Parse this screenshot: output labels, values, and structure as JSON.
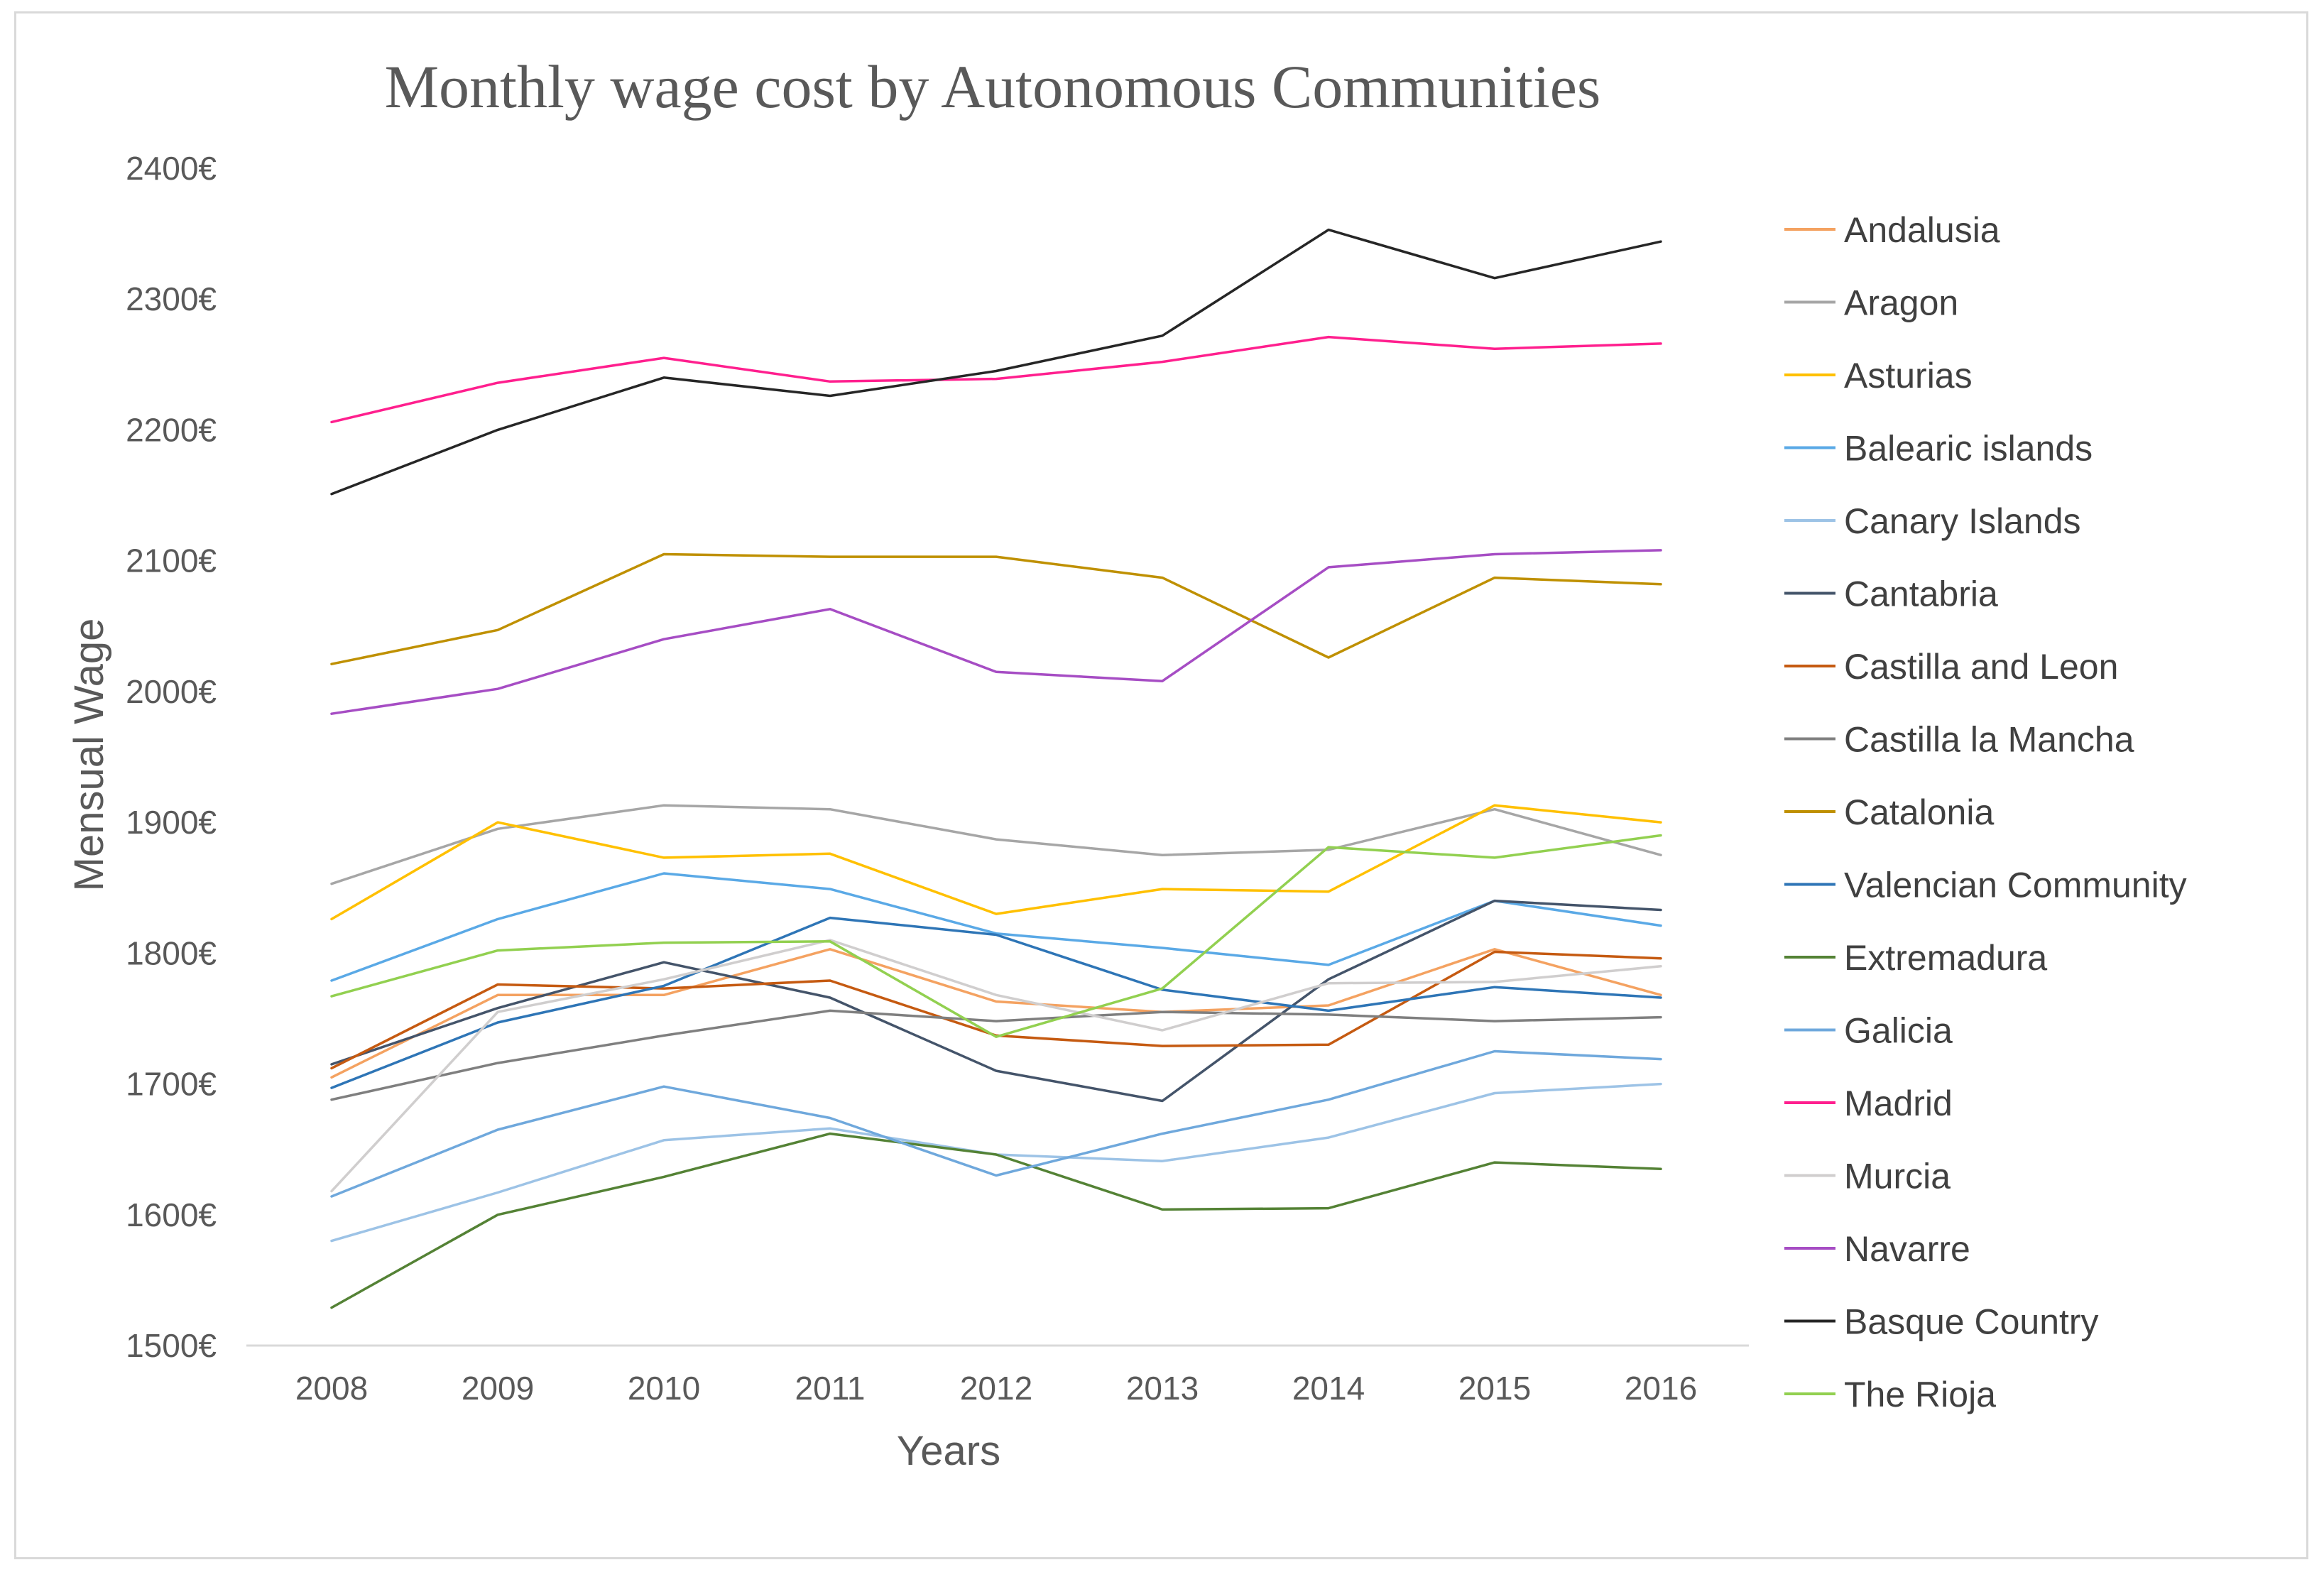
{
  "chart_data": {
    "type": "line",
    "title": "Monthly wage cost by Autonomous Communities",
    "xlabel": "Years",
    "ylabel": "Mensual Wage",
    "ylim": [
      1500,
      2400
    ],
    "ytick_values": [
      1500,
      1600,
      1700,
      1800,
      1900,
      2000,
      2100,
      2200,
      2300,
      2400
    ],
    "ytick_labels": [
      "1500€",
      "1600€",
      "1700€",
      "1800€",
      "1900€",
      "2000€",
      "2100€",
      "2200€",
      "2300€",
      "2400€"
    ],
    "categories": [
      "2008",
      "2009",
      "2010",
      "2011",
      "2012",
      "2013",
      "2014",
      "2015",
      "2016"
    ],
    "grid": false,
    "legend_position": "right",
    "series": [
      {
        "name": "Andalusia",
        "color": "#f4a261",
        "values": [
          1705,
          1768,
          1768,
          1803,
          1763,
          1755,
          1760,
          1803,
          1768
        ]
      },
      {
        "name": "Aragon",
        "color": "#a6a6a6",
        "values": [
          1853,
          1895,
          1913,
          1910,
          1887,
          1875,
          1879,
          1910,
          1875
        ]
      },
      {
        "name": "Asturias",
        "color": "#ffc000",
        "values": [
          1826,
          1900,
          1873,
          1876,
          1830,
          1849,
          1847,
          1913,
          1900
        ]
      },
      {
        "name": "Balearic islands",
        "color": "#5aa9e6",
        "values": [
          1779,
          1826,
          1861,
          1849,
          1815,
          1804,
          1791,
          1840,
          1821
        ]
      },
      {
        "name": "Canary Islands",
        "color": "#9dc3e6",
        "values": [
          1580,
          1617,
          1657,
          1666,
          1646,
          1641,
          1659,
          1693,
          1700
        ]
      },
      {
        "name": "Cantabria",
        "color": "#44546a",
        "values": [
          1715,
          1758,
          1793,
          1766,
          1710,
          1687,
          1780,
          1840,
          1833
        ]
      },
      {
        "name": "Castilla and Leon",
        "color": "#c55a11",
        "values": [
          1712,
          1776,
          1773,
          1779,
          1737,
          1729,
          1730,
          1801,
          1796
        ]
      },
      {
        "name": "Castilla la Mancha",
        "color": "#7f7f7f",
        "values": [
          1688,
          1716,
          1737,
          1756,
          1748,
          1755,
          1753,
          1748,
          1751
        ]
      },
      {
        "name": "Catalonia",
        "color": "#bf9000",
        "values": [
          2021,
          2047,
          2105,
          2103,
          2103,
          2087,
          2026,
          2087,
          2082
        ]
      },
      {
        "name": "Valencian Community",
        "color": "#2e75b6",
        "values": [
          1697,
          1747,
          1775,
          1827,
          1814,
          1772,
          1756,
          1774,
          1766
        ]
      },
      {
        "name": "Extremadura",
        "color": "#548235",
        "values": [
          1529,
          1600,
          1629,
          1662,
          1646,
          1604,
          1605,
          1640,
          1635
        ]
      },
      {
        "name": "Galicia",
        "color": "#6fa8dc",
        "values": [
          1614,
          1665,
          1698,
          1674,
          1630,
          1662,
          1688,
          1725,
          1719
        ]
      },
      {
        "name": "Madrid",
        "color": "#ff1f8e",
        "values": [
          2206,
          2236,
          2255,
          2237,
          2239,
          2252,
          2271,
          2262,
          2266
        ]
      },
      {
        "name": "Murcia",
        "color": "#d0cece",
        "values": [
          1618,
          1755,
          1780,
          1810,
          1768,
          1741,
          1777,
          1778,
          1790
        ]
      },
      {
        "name": "Navarre",
        "color": "#a64dc4",
        "values": [
          1983,
          2002,
          2040,
          2063,
          2015,
          2008,
          2095,
          2105,
          2108
        ]
      },
      {
        "name": "Basque Country",
        "color": "#262626",
        "values": [
          2151,
          2200,
          2240,
          2226,
          2245,
          2272,
          2353,
          2316,
          2344
        ]
      },
      {
        "name": "The Rioja",
        "color": "#92d050",
        "values": [
          1767,
          1802,
          1808,
          1809,
          1736,
          1773,
          1881,
          1873,
          1890
        ]
      }
    ]
  }
}
